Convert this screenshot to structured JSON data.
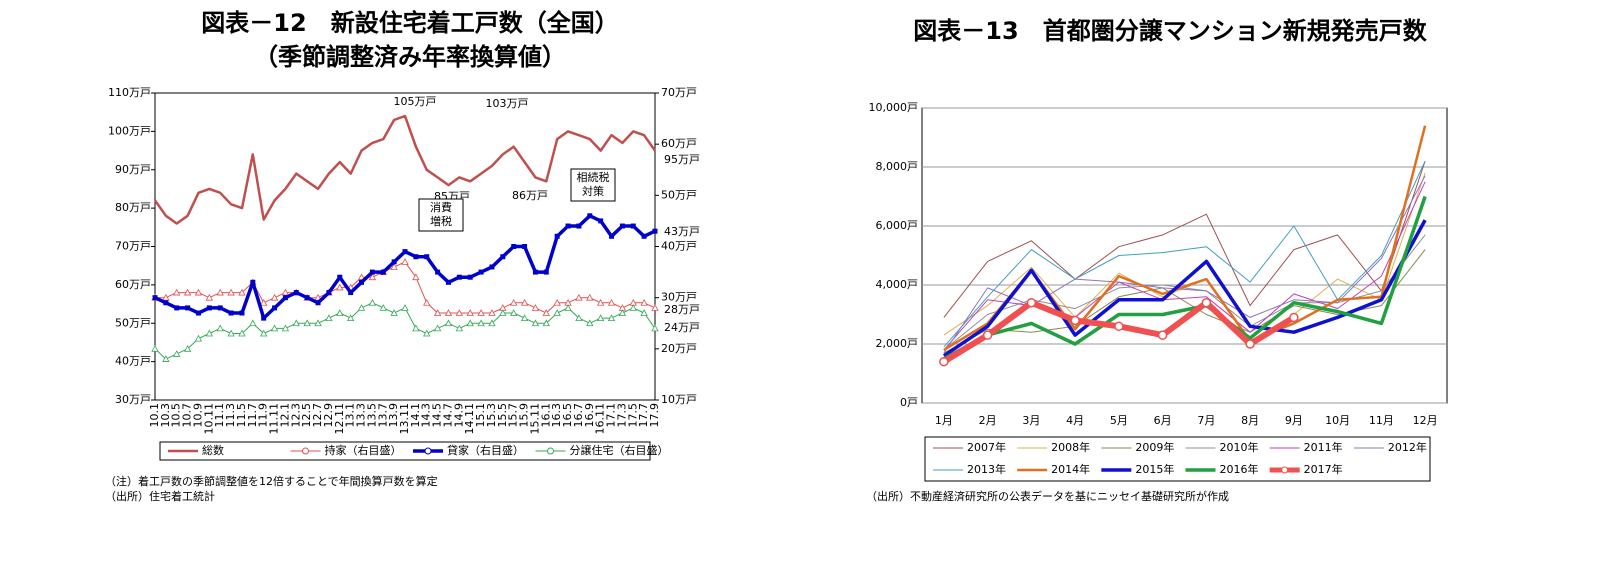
{
  "chart_data": [
    {
      "type": "line",
      "title": "図表－12　新設住宅着工戸数（全国）",
      "subtitle": "（季節調整済み年率換算値）",
      "grid": false,
      "categories": [
        "10.1",
        "10.3",
        "10.5",
        "10.7",
        "10.9",
        "10.11",
        "11.1",
        "11.3",
        "11.5",
        "11.7",
        "11.9",
        "11.11",
        "12.1",
        "12.3",
        "12.5",
        "12.7",
        "12.9",
        "12.11",
        "13.1",
        "13.3",
        "13.5",
        "13.7",
        "13.9",
        "13.11",
        "14.1",
        "14.3",
        "14.5",
        "14.7",
        "14.9",
        "14.11",
        "15.1",
        "15.3",
        "15.5",
        "15.7",
        "15.9",
        "15.11",
        "16.1",
        "16.3",
        "16.5",
        "16.7",
        "16.9",
        "16.11",
        "17.1",
        "17.3",
        "17.5",
        "17.7",
        "17.9"
      ],
      "ylim": [
        30,
        110
      ],
      "yticks": [
        {
          "value": 30,
          "label": "30万戸"
        },
        {
          "value": 40,
          "label": "40万戸"
        },
        {
          "value": 50,
          "label": "50万戸"
        },
        {
          "value": 60,
          "label": "60万戸"
        },
        {
          "value": 70,
          "label": "70万戸"
        },
        {
          "value": 80,
          "label": "80万戸"
        },
        {
          "value": 90,
          "label": "90万戸"
        },
        {
          "value": 100,
          "label": "100万戸"
        },
        {
          "value": 110,
          "label": "110万戸"
        }
      ],
      "y2lim": [
        10,
        70
      ],
      "y2ticks": [
        {
          "value": 10,
          "label": "10万戸"
        },
        {
          "value": 20,
          "label": "20万戸"
        },
        {
          "value": 30,
          "label": "30万戸"
        },
        {
          "value": 40,
          "label": "40万戸"
        },
        {
          "value": 50,
          "label": "50万戸"
        },
        {
          "value": 60,
          "label": "60万戸"
        },
        {
          "value": 70,
          "label": "70万戸"
        }
      ],
      "series": [
        {
          "name": "総数",
          "color": "#c0504d",
          "values": [
            82,
            78,
            76,
            78,
            84,
            85,
            84,
            81,
            80,
            94,
            77,
            82,
            85,
            89,
            87,
            85,
            89,
            92,
            89,
            95,
            97,
            98,
            103,
            104,
            96,
            90,
            88,
            86,
            88,
            87,
            89,
            91,
            94,
            96,
            92,
            88,
            87,
            98,
            100,
            99,
            98,
            95,
            99,
            97,
            100,
            99,
            95
          ]
        },
        {
          "name": "持家（右目盛）",
          "color": "#e05050",
          "marker": "triangle",
          "axis": "y2",
          "values": [
            30,
            30,
            31,
            31,
            31,
            30,
            31,
            31,
            31,
            33,
            29,
            30,
            31,
            31,
            30,
            30,
            31,
            32,
            32,
            34,
            34,
            35,
            36,
            37,
            34,
            29,
            27,
            27,
            27,
            27,
            27,
            27,
            28,
            29,
            29,
            28,
            27,
            29,
            29,
            30,
            30,
            29,
            29,
            28,
            29,
            29,
            28
          ]
        },
        {
          "name": "貸家（右目盛）",
          "color": "#0000cc",
          "marker": "star",
          "axis": "y2",
          "values": [
            30,
            29,
            28,
            28,
            27,
            28,
            28,
            27,
            27,
            33,
            26,
            28,
            30,
            31,
            30,
            29,
            31,
            34,
            31,
            33,
            35,
            35,
            37,
            39,
            38,
            38,
            35,
            33,
            34,
            34,
            35,
            36,
            38,
            40,
            40,
            35,
            35,
            42,
            44,
            44,
            46,
            45,
            42,
            44,
            44,
            42,
            43
          ]
        },
        {
          "name": "分譲住宅（右目盛）",
          "color": "#33aa55",
          "marker": "triangle",
          "axis": "y2",
          "values": [
            20,
            18,
            19,
            20,
            22,
            23,
            24,
            23,
            23,
            25,
            23,
            24,
            24,
            25,
            25,
            25,
            26,
            27,
            26,
            28,
            29,
            28,
            27,
            28,
            24,
            23,
            24,
            25,
            24,
            25,
            25,
            25,
            27,
            27,
            26,
            25,
            25,
            27,
            28,
            26,
            25,
            26,
            26,
            27,
            28,
            27,
            24
          ]
        }
      ],
      "annotations": [
        {
          "text": "105万戸",
          "color": "#c0504d"
        },
        {
          "text": "103万戸",
          "color": "#c0504d"
        },
        {
          "text": "85万戸",
          "color": "#c0504d"
        },
        {
          "text": "86万戸",
          "color": "#c0504d"
        },
        {
          "text": "95万戸",
          "color": "#c0504d"
        },
        {
          "text": "43万戸",
          "color": "#0000cc"
        },
        {
          "text": "28万戸",
          "color": "#e05050"
        },
        {
          "text": "24万戸",
          "color": "#33aa55"
        },
        {
          "text": [
            "消費",
            "増税"
          ],
          "color": "#000000"
        },
        {
          "text": [
            "相続税",
            "対策"
          ],
          "color": "#000000"
        }
      ],
      "notes": [
        "（注）着工戸数の季節調整値を12倍することで年間換算戸数を算定",
        "（出所）住宅着工統計"
      ]
    },
    {
      "type": "line",
      "title": "図表－13　首都圏分譲マンション新規発売戸数",
      "grid": true,
      "categories": [
        "1月",
        "2月",
        "3月",
        "4月",
        "5月",
        "6月",
        "7月",
        "8月",
        "9月",
        "10月",
        "11月",
        "12月"
      ],
      "ylim": [
        0,
        10000
      ],
      "yticks": [
        {
          "value": 0,
          "label": "0戸"
        },
        {
          "value": 2000,
          "label": "2,000戸"
        },
        {
          "value": 4000,
          "label": "4,000戸"
        },
        {
          "value": 6000,
          "label": "6,000戸"
        },
        {
          "value": 8000,
          "label": "8,000戸"
        },
        {
          "value": 10000,
          "label": "10,000戸"
        }
      ],
      "series": [
        {
          "name": "2007年",
          "color": "#a05050",
          "values": [
            2900,
            4800,
            5500,
            4200,
            5300,
            5700,
            6400,
            3300,
            5200,
            5700,
            3800,
            8200
          ]
        },
        {
          "name": "2008年",
          "color": "#e0b050",
          "values": [
            2300,
            3300,
            4600,
            2900,
            4400,
            3600,
            4200,
            2100,
            3000,
            4200,
            3500,
            7800
          ]
        },
        {
          "name": "2009年",
          "color": "#8a8a50",
          "values": [
            1700,
            2500,
            2400,
            2600,
            3600,
            3900,
            3000,
            2400,
            3300,
            3000,
            3300,
            5200
          ]
        },
        {
          "name": "2010年",
          "color": "#909090",
          "values": [
            1800,
            3000,
            3500,
            3200,
            3900,
            4000,
            3800,
            2600,
            3400,
            3400,
            3800,
            5700
          ]
        },
        {
          "name": "2011年",
          "color": "#c040c0",
          "values": [
            1800,
            3500,
            3300,
            2900,
            4100,
            3500,
            3600,
            2400,
            3700,
            3200,
            4300,
            7500
          ]
        },
        {
          "name": "2012年",
          "color": "#9070c0",
          "values": [
            1700,
            3900,
            3300,
            4200,
            4100,
            3900,
            3800,
            2900,
            3500,
            3400,
            4900,
            7700
          ]
        },
        {
          "name": "2013年",
          "color": "#40a0c0",
          "values": [
            1900,
            3600,
            5200,
            4200,
            5000,
            5100,
            5300,
            4100,
            6000,
            3500,
            5000,
            8200
          ]
        },
        {
          "name": "2014年",
          "color": "#e07020",
          "values": [
            1800,
            2700,
            4500,
            2500,
            4300,
            3700,
            4200,
            2100,
            2700,
            3500,
            3600,
            9400
          ]
        },
        {
          "name": "2015年",
          "color": "#1010d0",
          "values": [
            1600,
            2600,
            4500,
            2300,
            3500,
            3500,
            4800,
            2600,
            2400,
            2900,
            3500,
            6200
          ]
        },
        {
          "name": "2016年",
          "color": "#20a040",
          "values": [
            1500,
            2300,
            2700,
            2000,
            3000,
            3000,
            3300,
            2200,
            3400,
            3100,
            2700,
            7000
          ]
        },
        {
          "name": "2017年",
          "color": "#f05050",
          "marker": "circle",
          "values": [
            1400,
            2300,
            3400,
            2800,
            2600,
            2300,
            3400,
            2000,
            2900,
            null,
            null,
            null
          ]
        }
      ],
      "notes": [
        "（出所）不動産経済研究所の公表データを基にニッセイ基礎研究所が作成"
      ]
    }
  ]
}
